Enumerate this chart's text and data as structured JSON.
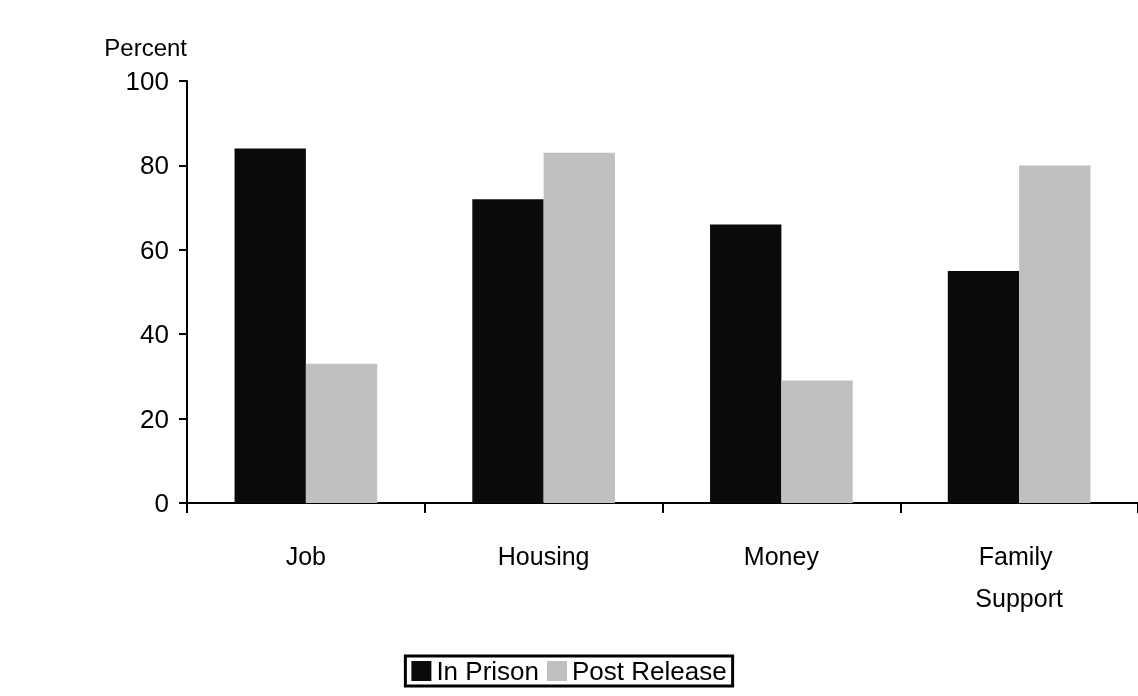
{
  "chart_data": {
    "type": "bar",
    "ylabel": "Percent",
    "categories": [
      "Job",
      "Housing",
      "Money",
      "Family Support"
    ],
    "series": [
      {
        "name": "In Prison",
        "color": "#0a0a0a",
        "values": [
          84,
          72,
          66,
          55
        ]
      },
      {
        "name": "Post Release",
        "color": "#c0c0c0",
        "values": [
          33,
          83,
          29,
          80
        ]
      }
    ],
    "ylim": [
      0,
      100
    ],
    "yticks": [
      0,
      20,
      40,
      60,
      80,
      100
    ],
    "grid": false,
    "legend": "bottom"
  }
}
